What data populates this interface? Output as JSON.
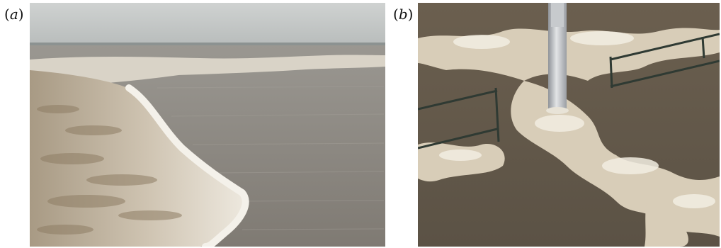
{
  "panels": [
    {
      "open": "(",
      "letter": "a",
      "close": ")"
    },
    {
      "open": "(",
      "letter": "b",
      "close": ")"
    }
  ],
  "colors": {
    "sky": "#c4c7c5",
    "water": "#8b8680",
    "foam": "#e9e3d6",
    "muddy": "#9a8a70",
    "pole": "#b9bcc0",
    "railing": "#2f3a33"
  },
  "icons": [
    "tidal-bore-photo",
    "flooded-railing-photo"
  ]
}
